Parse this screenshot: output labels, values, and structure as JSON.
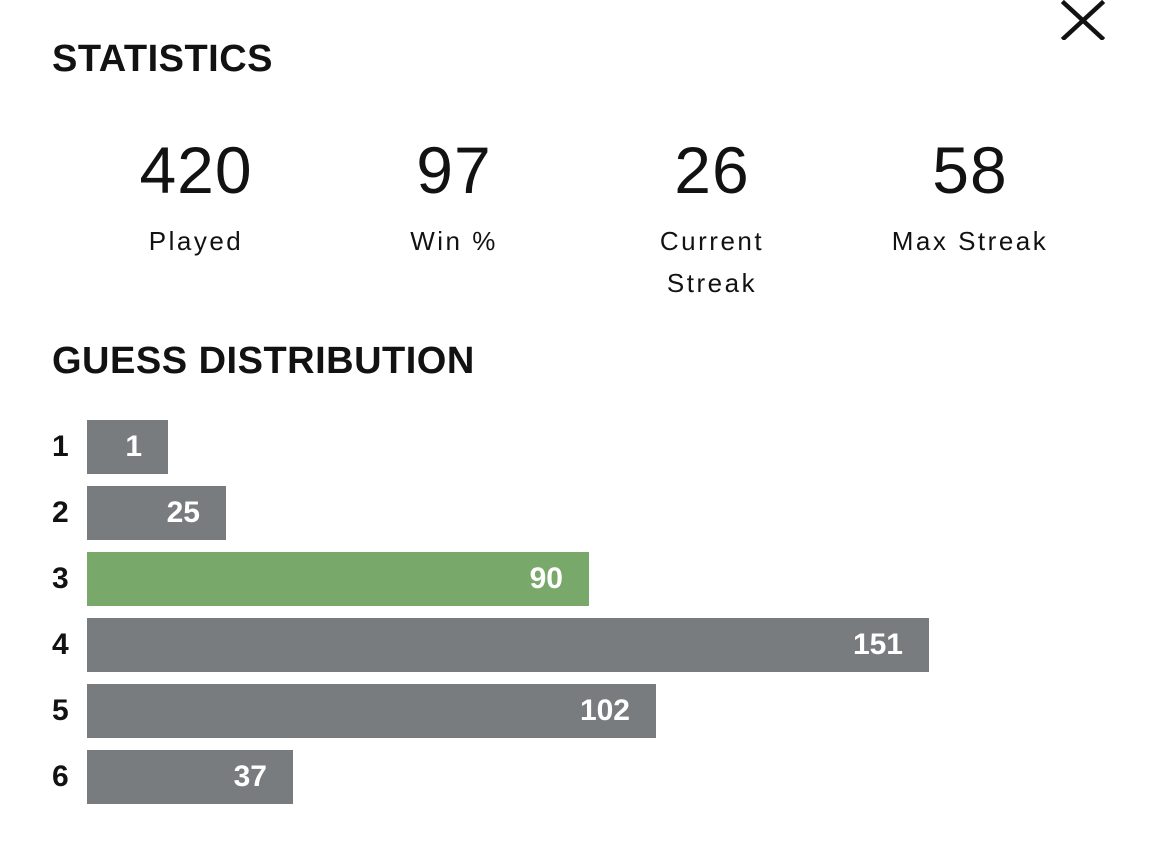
{
  "header": {
    "statistics_title": "STATISTICS",
    "close_icon": "close-icon"
  },
  "stats": [
    {
      "value": "420",
      "label": "Played"
    },
    {
      "value": "97",
      "label": "Win %"
    },
    {
      "value": "26",
      "label": "Current Streak"
    },
    {
      "value": "58",
      "label": "Max Streak"
    }
  ],
  "distribution": {
    "title": "GUESS DISTRIBUTION",
    "max_value": 151,
    "highlight_color": "#79a86b",
    "bar_color": "#787c7e",
    "rows": [
      {
        "guess": "1",
        "count": "1",
        "value": 1,
        "highlight": false
      },
      {
        "guess": "2",
        "count": "25",
        "value": 25,
        "highlight": false
      },
      {
        "guess": "3",
        "count": "90",
        "value": 90,
        "highlight": true
      },
      {
        "guess": "4",
        "count": "151",
        "value": 151,
        "highlight": false
      },
      {
        "guess": "5",
        "count": "102",
        "value": 102,
        "highlight": false
      },
      {
        "guess": "6",
        "count": "37",
        "value": 37,
        "highlight": false
      }
    ]
  }
}
